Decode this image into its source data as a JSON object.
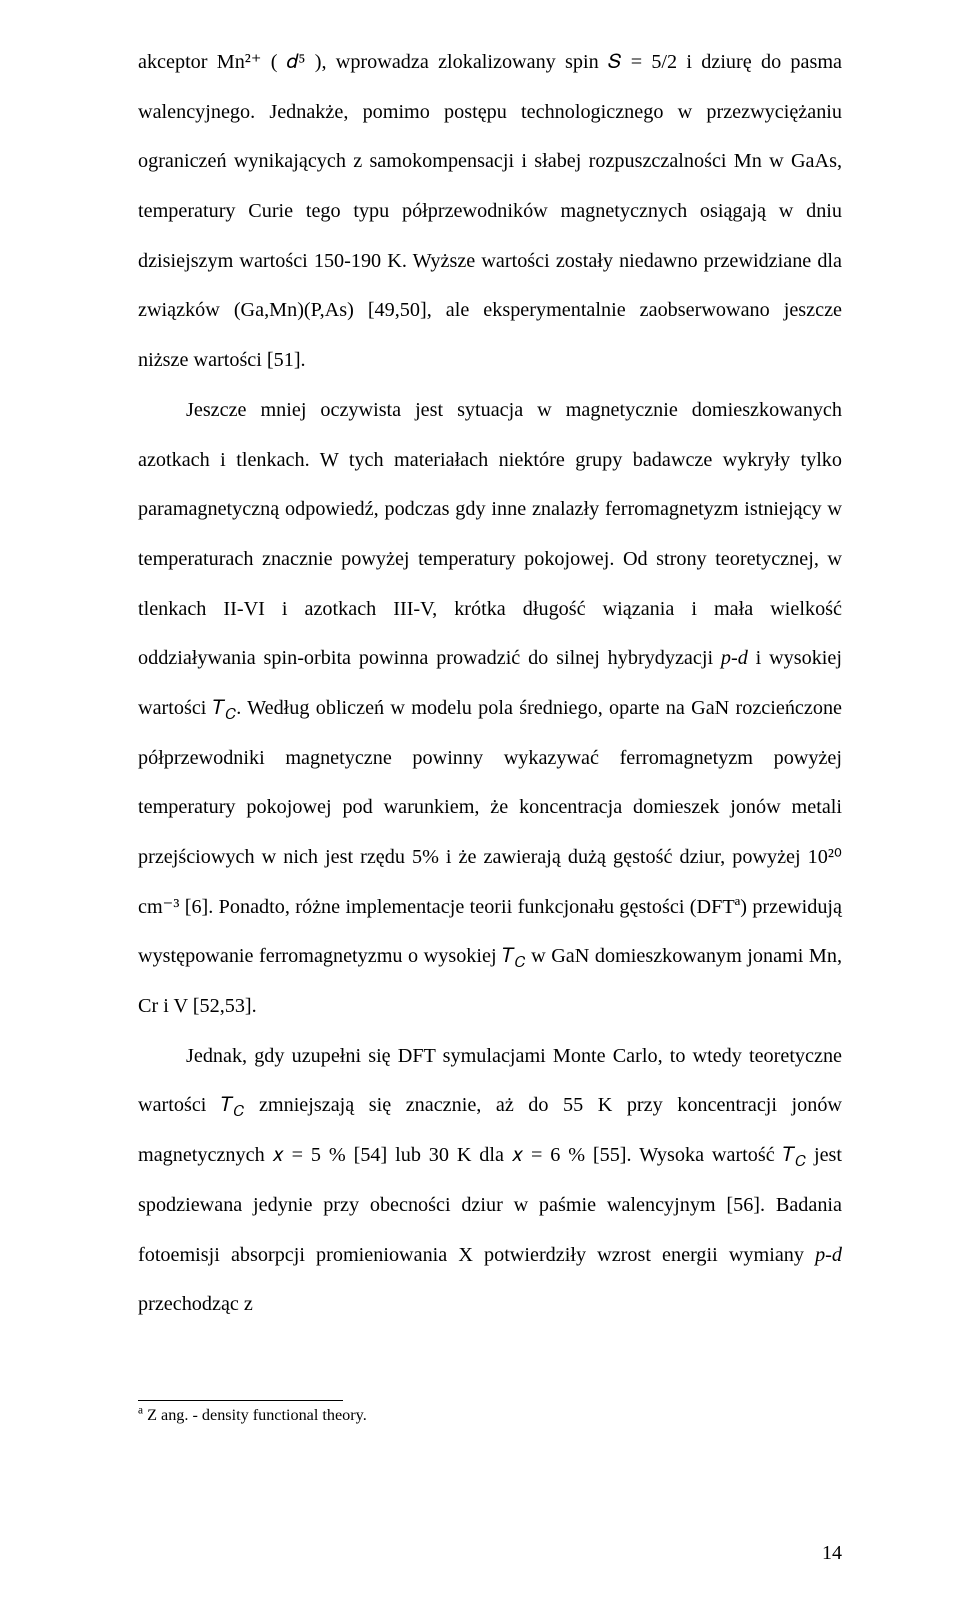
{
  "page_number": "14",
  "paragraphs": {
    "p1": "akceptor Mn²⁺ ( 𝑑⁵ ), wprowadza zlokalizowany spin 𝑆 = 5/2 i dziurę do pasma walencyjnego. Jednakże, pomimo postępu technologicznego w przezwyciężaniu ograniczeń wynikających z samokompensacji i słabej rozpuszczalności Mn w GaAs, temperatury Curie tego typu półprzewodników magnetycznych osiągają w dniu dzisiejszym wartości 150-190 K. Wyższe wartości zostały niedawno przewidziane dla związków (Ga,Mn)(P,As) [49,50], ale eksperymentalnie zaobserwowano jeszcze niższe wartości [51].",
    "p2": "Jeszcze mniej oczywista jest sytuacja w magnetycznie domieszkowanych azotkach i tlenkach. W tych materiałach niektóre grupy badawcze wykryły tylko paramagnetyczną odpowiedź, podczas gdy inne znalazły ferromagnetyzm istniejący w temperaturach znacznie powyżej temperatury pokojowej. Od strony teoretycznej, w tlenkach II-VI i azotkach III-V, krótka długość wiązania i mała wielkość oddziaływania spin-orbita powinna prowadzić do silnej hybrydyzacji ",
    "p2b": " i wysokiej wartości 𝑇",
    "p2c": ". Według obliczeń w modelu pola średniego, oparte na GaN rozcieńczone półprzewodniki magnetyczne powinny wykazywać ferromagnetyzm powyżej temperatury pokojowej pod warunkiem, że koncentracja domieszek jonów metali przejściowych w nich jest rzędu 5% i że zawierają dużą gęstość dziur, powyżej 10²⁰ cm⁻³ [6]. Ponadto, różne implementacje teorii funkcjonału gęstości (DFTª) przewidują występowanie ferromagnetyzmu o wysokiej 𝑇",
    "p2d": " w GaN domieszkowanym jonami Mn, Cr i V [52,53].",
    "p3": "Jednak, gdy uzupełni się DFT symulacjami Monte Carlo, to wtedy teoretyczne wartości 𝑇",
    "p3b": " zmniejszają się znacznie, aż do 55 K przy koncentracji jonów magnetycznych 𝑥 = 5 % [54] lub 30 K dla 𝑥 = 6 % [55]. Wysoka wartość 𝑇",
    "p3c": " jest spodziewana jedynie przy obecności dziur w paśmie walencyjnym [56]. Badania fotoemisji absorpcji promieniowania X potwierdziły wzrost energii wymiany ",
    "p3d": " przechodząc z"
  },
  "inline": {
    "pd": "p-d",
    "TC_sub": "𝐶"
  },
  "footnote": {
    "marker": "a",
    "text": " Z ang. - density functional theory."
  }
}
